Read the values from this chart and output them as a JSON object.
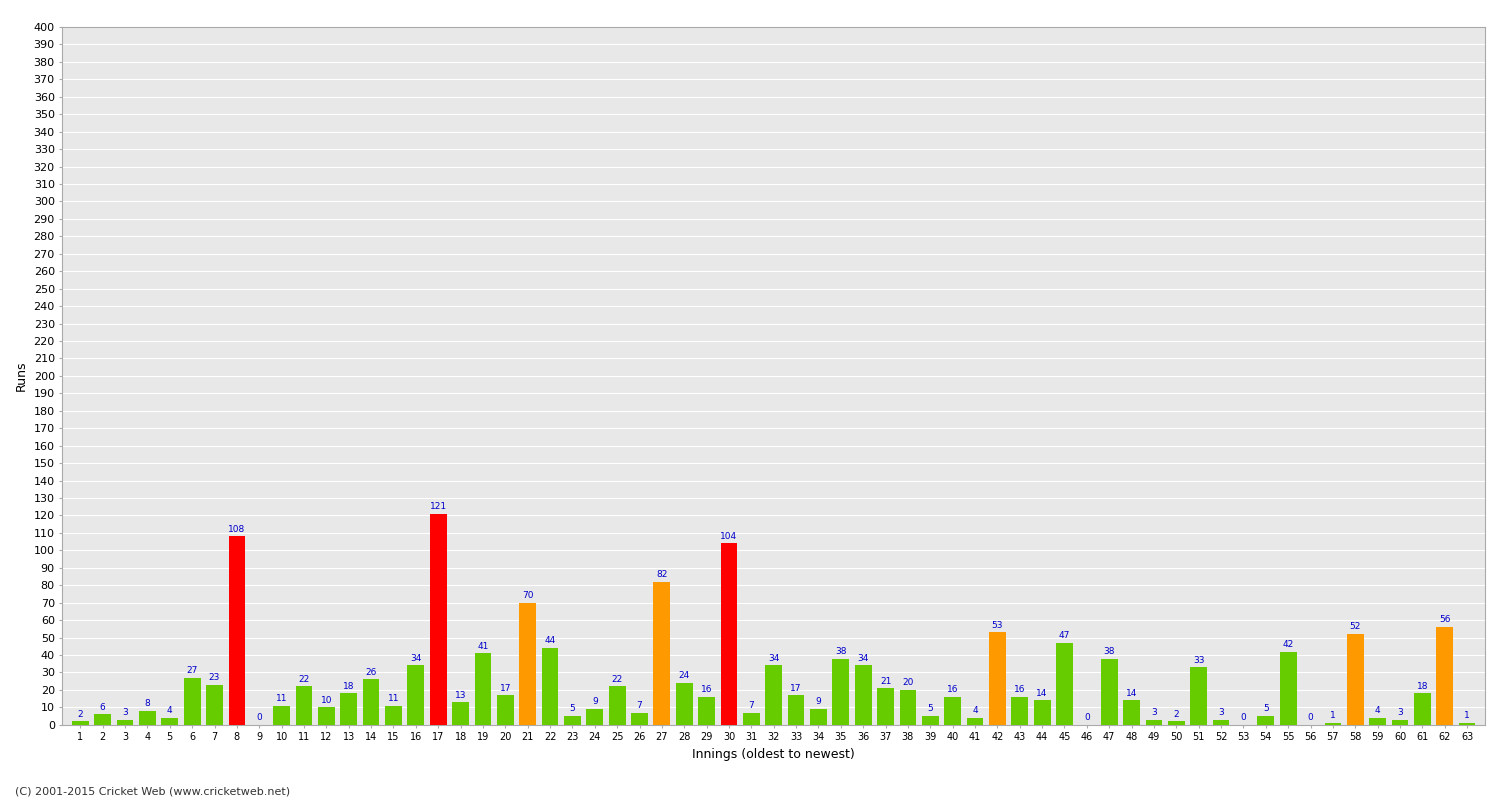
{
  "innings": [
    1,
    2,
    3,
    4,
    5,
    6,
    7,
    8,
    9,
    10,
    11,
    12,
    13,
    14,
    15,
    16,
    17,
    18,
    19,
    20,
    21,
    22,
    23,
    24,
    25,
    26,
    27,
    28,
    29,
    30,
    31,
    32,
    33,
    34,
    35,
    36,
    37,
    38,
    39,
    40,
    41,
    42,
    43,
    44,
    45,
    46,
    47,
    48,
    49,
    50,
    51,
    52,
    53,
    54,
    55,
    56,
    57,
    58,
    59,
    60,
    61,
    62,
    63
  ],
  "scores": [
    2,
    6,
    3,
    8,
    4,
    27,
    23,
    108,
    0,
    11,
    22,
    10,
    18,
    26,
    11,
    34,
    121,
    13,
    41,
    17,
    70,
    44,
    5,
    9,
    22,
    7,
    82,
    24,
    16,
    104,
    7,
    34,
    17,
    9,
    38,
    34,
    21,
    20,
    5,
    16,
    4,
    53,
    16,
    14,
    47,
    0,
    38,
    14,
    3,
    2,
    33,
    3,
    0,
    5,
    42,
    0,
    1,
    52,
    4,
    3,
    18,
    56,
    1
  ],
  "colors": [
    "green",
    "green",
    "green",
    "green",
    "green",
    "green",
    "green",
    "red",
    "green",
    "green",
    "green",
    "green",
    "green",
    "green",
    "green",
    "green",
    "red",
    "green",
    "green",
    "green",
    "orange",
    "green",
    "green",
    "green",
    "green",
    "green",
    "orange",
    "green",
    "green",
    "red",
    "green",
    "green",
    "green",
    "green",
    "green",
    "green",
    "green",
    "green",
    "green",
    "green",
    "green",
    "orange",
    "green",
    "green",
    "green",
    "green",
    "green",
    "green",
    "green",
    "green",
    "green",
    "green",
    "green",
    "green",
    "green",
    "green",
    "green",
    "orange",
    "green",
    "green",
    "green",
    "orange",
    "green"
  ],
  "ylabel": "Runs",
  "xlabel": "Innings (oldest to newest)",
  "ylim": [
    0,
    400
  ],
  "yticks": [
    0,
    10,
    20,
    30,
    40,
    50,
    60,
    70,
    80,
    90,
    100,
    110,
    120,
    130,
    140,
    150,
    160,
    170,
    180,
    190,
    200,
    210,
    220,
    230,
    240,
    250,
    260,
    270,
    280,
    290,
    300,
    310,
    320,
    330,
    340,
    350,
    360,
    370,
    380,
    390,
    400
  ],
  "bar_color_map": {
    "green": "#66cc00",
    "red": "#ff0000",
    "orange": "#ff9900"
  },
  "label_color": "#0000cc",
  "figure_bg": "#ffffff",
  "plot_bg": "#e8e8e8",
  "grid_color": "#ffffff",
  "footer": "(C) 2001-2015 Cricket Web (www.cricketweb.net)",
  "spine_color": "#aaaaaa"
}
